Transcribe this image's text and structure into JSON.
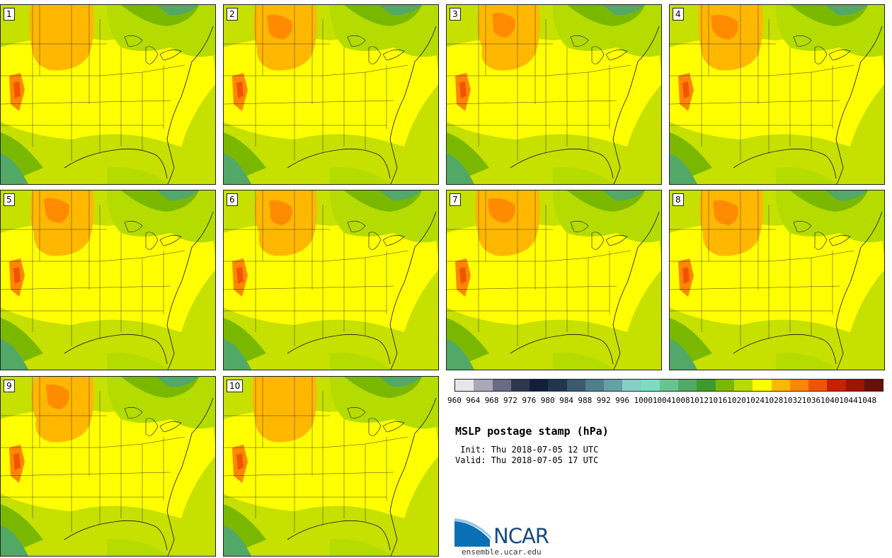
{
  "panels": [
    {
      "number": "1"
    },
    {
      "number": "2"
    },
    {
      "number": "3"
    },
    {
      "number": "4"
    },
    {
      "number": "5"
    },
    {
      "number": "6"
    },
    {
      "number": "7"
    },
    {
      "number": "8"
    },
    {
      "number": "9"
    },
    {
      "number": "10"
    }
  ],
  "colorbar": {
    "colors": [
      "#e6e6ec",
      "#a8a8b8",
      "#6a6a86",
      "#2e3650",
      "#121e3a",
      "#22354e",
      "#3a5a72",
      "#4f7f8c",
      "#64a0a4",
      "#86cec6",
      "#7bdcc4",
      "#68c48e",
      "#52a866",
      "#3f9a2c",
      "#7ab800",
      "#b4dc00",
      "#ffff00",
      "#ffb700",
      "#ff8600",
      "#f05400",
      "#c82000",
      "#9e1400",
      "#6a1008"
    ],
    "labels": [
      "960",
      "964",
      "968",
      "972",
      "976",
      "980",
      "984",
      "988",
      "992",
      "996",
      "1000",
      "1004",
      "1008",
      "1012",
      "1016",
      "1020",
      "1024",
      "1028",
      "1032",
      "1036",
      "1040",
      "1044",
      "1048"
    ]
  },
  "title": "MSLP postage stamp (hPa)",
  "init": " Init: Thu 2018-07-05 12 UTC",
  "valid": "Valid: Thu 2018-07-05 17 UTC",
  "logo": {
    "text": "NCAR",
    "site": "ensemble.ucar.edu"
  }
}
